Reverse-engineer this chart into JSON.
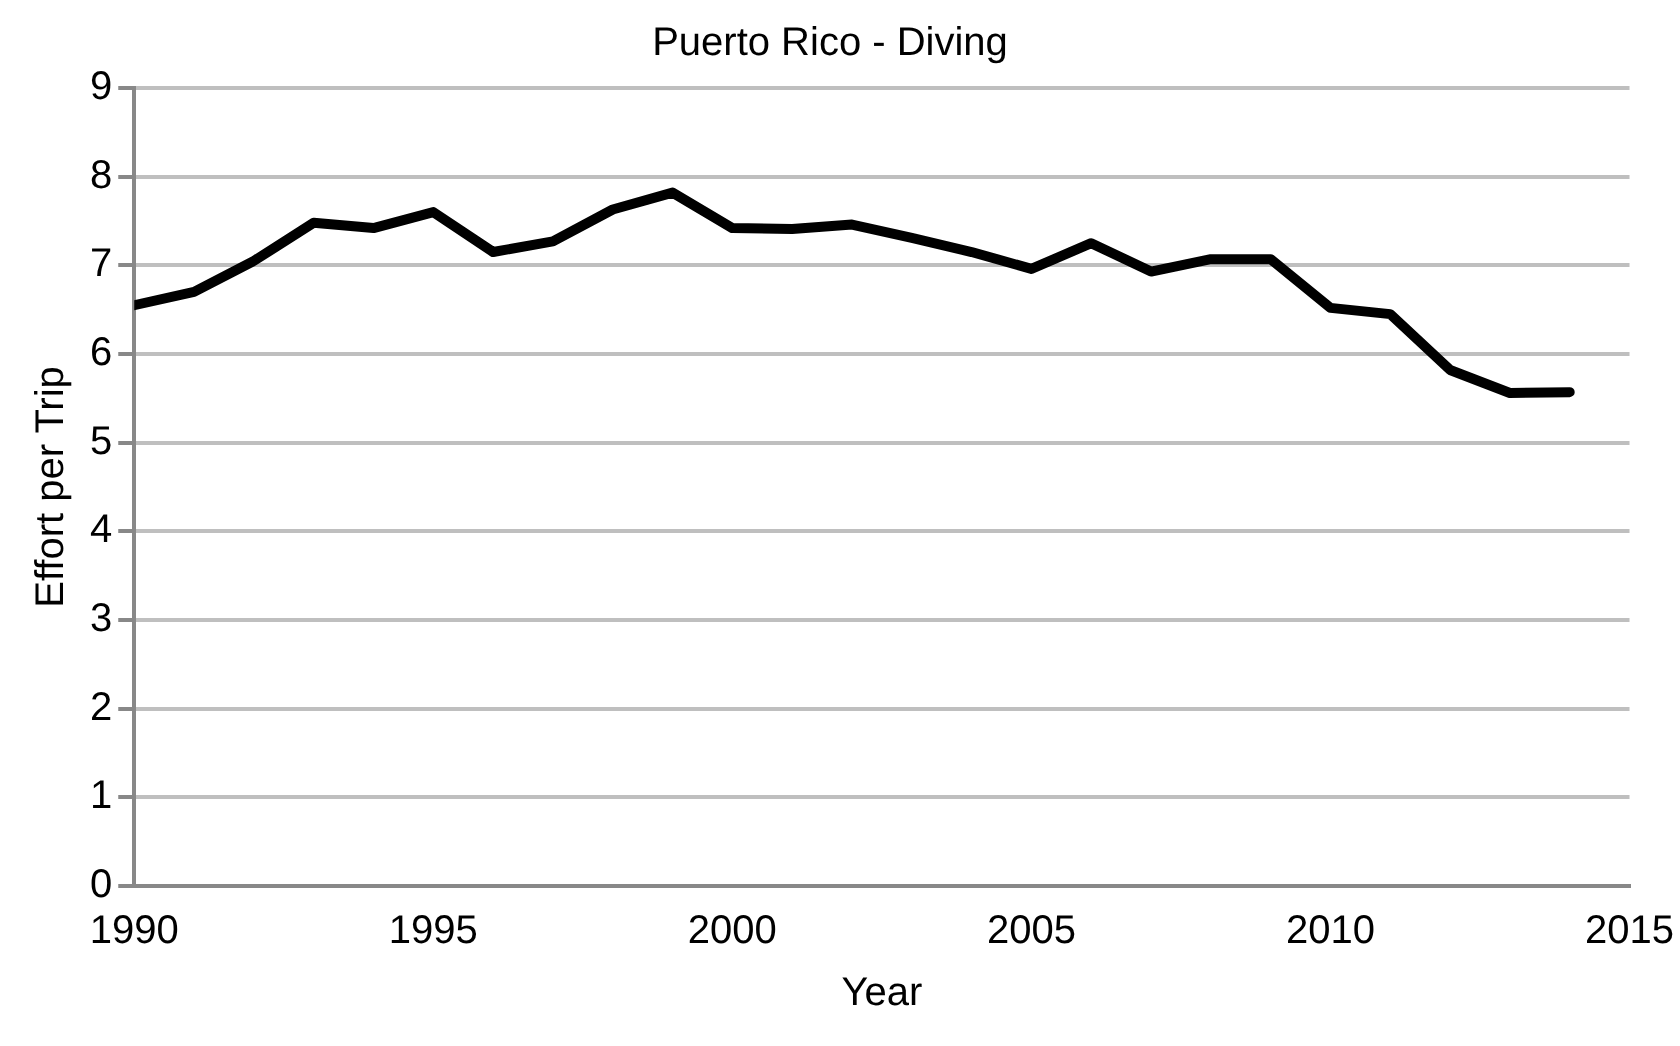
{
  "chart_data": {
    "type": "line",
    "title": "Puerto Rico - Diving",
    "xlabel": "Year",
    "ylabel": "Effort per Trip",
    "x": [
      1990,
      1991,
      1992,
      1993,
      1994,
      1995,
      1996,
      1997,
      1998,
      1999,
      2000,
      2001,
      2002,
      2003,
      2004,
      2005,
      2006,
      2007,
      2008,
      2009,
      2010,
      2011,
      2012,
      2013,
      2014
    ],
    "series": [
      {
        "color": "#000000",
        "values": [
          6.55,
          6.7,
          7.05,
          7.48,
          7.42,
          7.6,
          7.15,
          7.27,
          7.63,
          7.82,
          7.42,
          7.41,
          7.46,
          7.31,
          7.15,
          6.96,
          7.25,
          6.93,
          7.07,
          7.07,
          6.52,
          6.45,
          5.82,
          5.56,
          5.57
        ]
      }
    ],
    "xlim": [
      1990,
      2015
    ],
    "xticks": [
      1990,
      1995,
      2000,
      2005,
      2010,
      2015
    ],
    "ylim": [
      0,
      9
    ],
    "yticks": [
      0,
      1,
      2,
      3,
      4,
      5,
      6,
      7,
      8,
      9
    ],
    "grid": "y",
    "legend": false,
    "marker": "none",
    "line_style": "solid"
  }
}
